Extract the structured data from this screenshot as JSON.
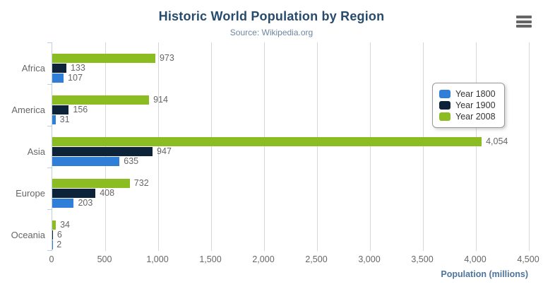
{
  "chart_data": {
    "type": "bar",
    "orientation": "horizontal",
    "title": "Historic World Population by Region",
    "subtitle": "Source: Wikipedia.org",
    "categories": [
      "Africa",
      "America",
      "Asia",
      "Europe",
      "Oceania"
    ],
    "series": [
      {
        "name": "Year 1800",
        "color": "#2f7ed8",
        "values": [
          107,
          31,
          635,
          203,
          2
        ],
        "labels": [
          "107",
          "31",
          "635",
          "203",
          "2"
        ]
      },
      {
        "name": "Year 1900",
        "color": "#0d233a",
        "values": [
          133,
          156,
          947,
          408,
          6
        ],
        "labels": [
          "133",
          "156",
          "947",
          "408",
          "6"
        ]
      },
      {
        "name": "Year 2008",
        "color": "#8bbc21",
        "values": [
          973,
          914,
          4054,
          732,
          34
        ],
        "labels": [
          "973",
          "914",
          "4,054",
          "732",
          "34"
        ]
      }
    ],
    "bar_order_top_to_bottom": [
      "Year 2008",
      "Year 1900",
      "Year 1800"
    ],
    "xlabel": "Population (millions)",
    "xlim": [
      0,
      4500
    ],
    "x_ticks": [
      "0",
      "500",
      "1,000",
      "1,500",
      "2,000",
      "2,500",
      "3,000",
      "3,500",
      "4,000",
      "4,500"
    ],
    "grid": true,
    "legend_position": "right",
    "colors": {
      "title": "#274b6d",
      "subtitle": "#6d869f",
      "axis_line": "#c0d0e0",
      "gridline": "#d6d6d6",
      "label_text": "#666666",
      "axis_title": "#4d759e"
    }
  },
  "toolbar": {
    "context_menu_icon": "hamburger-menu-icon"
  }
}
